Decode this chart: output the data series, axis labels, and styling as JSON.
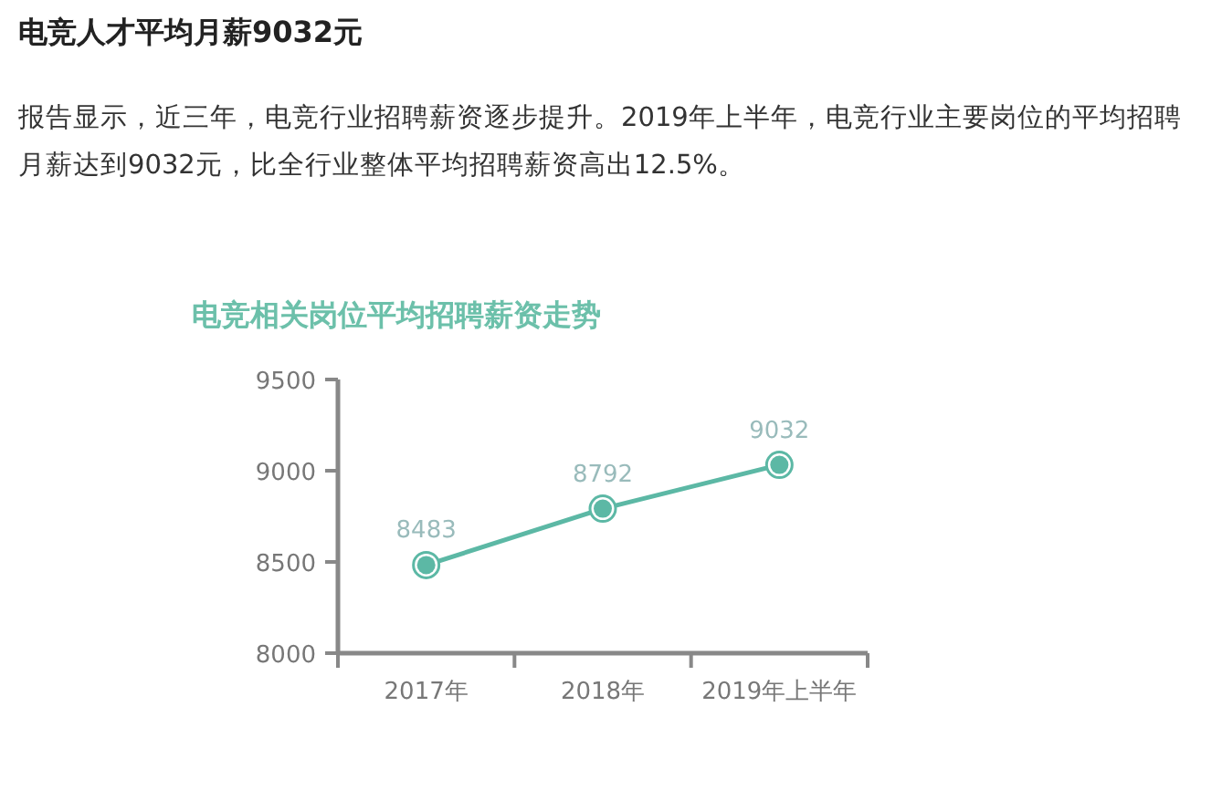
{
  "chart_data": {
    "type": "line",
    "title": "电竞人才平均月薪9032元",
    "subtitle": "报告显示，近三年，电竞行业招聘薪资逐步提升。2019年上半年，电竞行业主要岗位的平均招聘月薪达到9032元，比全行业整体平均招聘薪资高出12.5%。",
    "annotations": [
      "电竞相关岗位平均招聘薪资走势"
    ],
    "categories": [
      "2017年",
      "2018年",
      "2019年上半年"
    ],
    "series": [
      {
        "color": "#5cb8a5",
        "values": [
          8483,
          8792,
          9032
        ]
      }
    ],
    "ylim": [
      8000,
      9500
    ],
    "yticks": [
      8000,
      8500,
      9000,
      9500
    ],
    "data_labels": true,
    "marker": "circle",
    "grid": false
  }
}
